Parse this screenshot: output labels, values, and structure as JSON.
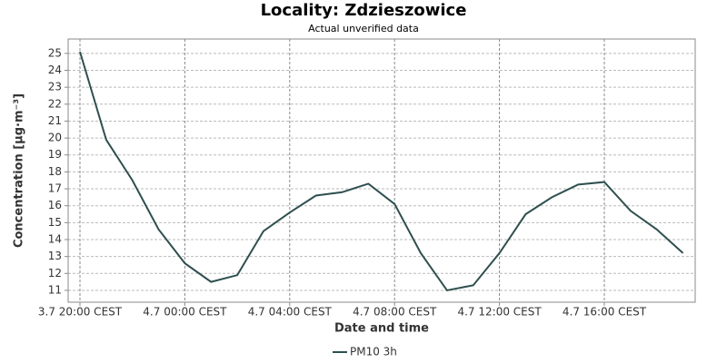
{
  "chart_data": {
    "type": "line",
    "title": "Locality: Zdzieszowice",
    "subtitle": "Actual unverified data",
    "x_label": "Date and time",
    "y_label": "Concentration [µg·m⁻³]",
    "categories": [
      "3.7 20:00 CEST",
      null,
      null,
      null,
      "4.7 00:00 CEST",
      null,
      null,
      null,
      "4.7 04:00 CEST",
      null,
      null,
      null,
      "4.7 08:00 CEST",
      null,
      null,
      null,
      "4.7 12:00 CEST",
      null,
      null,
      null,
      "4.7 16:00 CEST",
      null,
      null,
      null
    ],
    "series": [
      {
        "name": "PM10 3h",
        "color": "#2f4f4f",
        "values": [
          25.1,
          19.9,
          17.5,
          14.6,
          12.6,
          11.5,
          11.9,
          14.5,
          15.6,
          16.6,
          16.8,
          17.3,
          16.1,
          13.2,
          11.0,
          11.3,
          13.2,
          15.5,
          16.5,
          17.25,
          17.4,
          15.7,
          14.6,
          13.2
        ]
      }
    ],
    "ylim": [
      10.3,
      25.85
    ],
    "yticks": [
      11,
      12,
      13,
      14,
      15,
      16,
      17,
      18,
      19,
      20,
      21,
      22,
      23,
      24,
      25
    ],
    "grid": true,
    "legend": "bottom"
  }
}
